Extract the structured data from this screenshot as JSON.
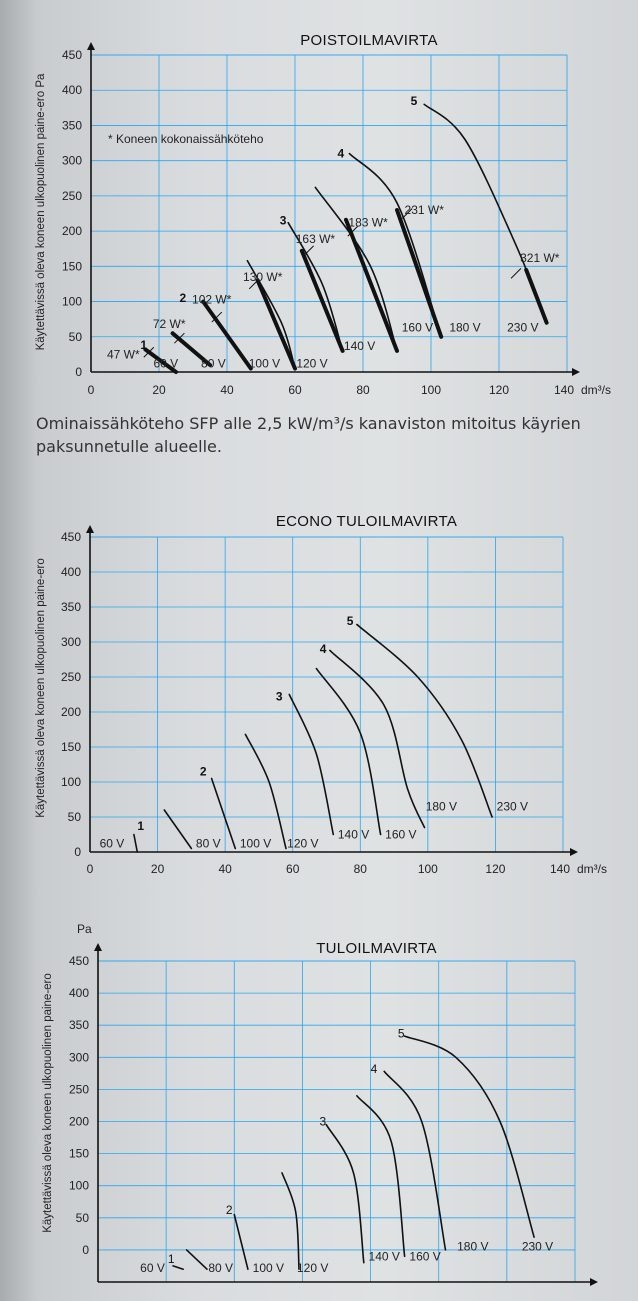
{
  "caption": "Ominaissähköteho SFP alle 2,5 kW/m³/s kanaviston mitoitus käyrien paksunnetulle alueelle.",
  "chart_data": [
    {
      "type": "line",
      "title": "POISTOILMAVIRTA",
      "ylabel": "Käytettävissä oleva koneen ulkopuolinen paine-ero Pa",
      "xunit": "dm³/s",
      "xlim": [
        0,
        140
      ],
      "ylim": [
        0,
        450
      ],
      "x_ticks": [
        "0",
        "20",
        "40",
        "60",
        "80",
        "100",
        "120",
        "140"
      ],
      "y_ticks": [
        "0",
        "50",
        "100",
        "150",
        "200",
        "250",
        "300",
        "350",
        "400",
        "450"
      ],
      "note": "* Koneen kokonaissähköteho",
      "curve_numbers": [
        "1",
        "2",
        "3",
        "4",
        "5"
      ],
      "series": [
        {
          "name": "60 V",
          "points": [
            [
              16,
              32
            ],
            [
              25,
              0
            ]
          ],
          "thick": [
            [
              16,
              32
            ],
            [
              25,
              0
            ]
          ]
        },
        {
          "name": "80 V",
          "points": [
            [
              24,
              55
            ],
            [
              35,
              10
            ]
          ],
          "thick": [
            [
              24,
              55
            ],
            [
              35,
              10
            ]
          ]
        },
        {
          "name": "100 V",
          "points": [
            [
              33,
              100
            ],
            [
              47,
              5
            ]
          ],
          "thick": [
            [
              33,
              100
            ],
            [
              47,
              5
            ]
          ]
        },
        {
          "name": "120 V",
          "points": [
            [
              46,
              158
            ],
            [
              56,
              70
            ],
            [
              60,
              5
            ]
          ],
          "thick": [
            [
              49,
              130
            ],
            [
              60,
              5
            ]
          ]
        },
        {
          "name": "140 V",
          "points": [
            [
              58,
              212
            ],
            [
              68,
              125
            ],
            [
              74,
              30
            ]
          ],
          "thick": [
            [
              62,
              172
            ],
            [
              74,
              30
            ]
          ]
        },
        {
          "name": "160 V",
          "points": [
            [
              66,
              262
            ],
            [
              82,
              152
            ],
            [
              90,
              30
            ]
          ],
          "thick": [
            [
              75,
              216
            ],
            [
              90,
              30
            ]
          ]
        },
        {
          "name": "180 V",
          "points": [
            [
              76,
              310
            ],
            [
              90,
              240
            ],
            [
              103,
              50
            ]
          ],
          "thick": [
            [
              90,
              230
            ],
            [
              103,
              50
            ]
          ]
        },
        {
          "name": "230 V",
          "points": [
            [
              98,
              380
            ],
            [
              110,
              330
            ],
            [
              125,
              180
            ],
            [
              134,
              70
            ]
          ],
          "thick": [
            [
              128,
              145
            ],
            [
              134,
              70
            ]
          ]
        }
      ],
      "series_labels": [
        {
          "name": "60 V",
          "x": 22,
          "y": 12
        },
        {
          "name": "80 V",
          "x": 36,
          "y": 12
        },
        {
          "name": "100 V",
          "x": 51,
          "y": 12
        },
        {
          "name": "120 V",
          "x": 65,
          "y": 12
        },
        {
          "name": "140 V",
          "x": 79,
          "y": 37
        },
        {
          "name": "160 V",
          "x": 96,
          "y": 63
        },
        {
          "name": "180 V",
          "x": 110,
          "y": 63
        },
        {
          "name": "230 V",
          "x": 127,
          "y": 63
        }
      ],
      "curve_number_marks": [
        {
          "label": "1",
          "x": 15.5,
          "y": 38
        },
        {
          "label": "2",
          "x": 27,
          "y": 105
        },
        {
          "label": "3",
          "x": 56.5,
          "y": 215
        },
        {
          "label": "4",
          "x": 73.5,
          "y": 310
        },
        {
          "label": "5",
          "x": 95,
          "y": 385
        }
      ],
      "power_labels": [
        {
          "label": "47 W*",
          "x": 9.5,
          "y": 25,
          "at": [
            17,
            28
          ]
        },
        {
          "label": "72 W*",
          "x": 23,
          "y": 68,
          "at": [
            26,
            48
          ]
        },
        {
          "label": "102 W*",
          "x": 35.5,
          "y": 103,
          "at": [
            37,
            78
          ]
        },
        {
          "label": "130 W*",
          "x": 50.5,
          "y": 135,
          "at": [
            48,
            125
          ]
        },
        {
          "label": "163 W*",
          "x": 66,
          "y": 189,
          "at": [
            64,
            172
          ]
        },
        {
          "label": "183 W*",
          "x": 81.5,
          "y": 212,
          "at": [
            77,
            200
          ]
        },
        {
          "label": "231 W*",
          "x": 98,
          "y": 230,
          "at": [
            93,
            225
          ]
        },
        {
          "label": "321 W*",
          "x": 132,
          "y": 162,
          "at": [
            125,
            140
          ]
        }
      ]
    },
    {
      "type": "line",
      "title": "ECONO TULOILMAVIRTA",
      "ylabel": "Käytettävissä oleva koneen ulkopuolinen paine-ero",
      "xunit": "dm³/s",
      "xlim": [
        0,
        140
      ],
      "ylim": [
        0,
        450
      ],
      "x_ticks": [
        "0",
        "20",
        "40",
        "60",
        "80",
        "100",
        "120",
        "140"
      ],
      "y_ticks": [
        "0",
        "50",
        "100",
        "150",
        "200",
        "250",
        "300",
        "350",
        "400",
        "450"
      ],
      "curve_numbers": [
        "1",
        "2",
        "3",
        "4",
        "5"
      ],
      "series": [
        {
          "name": "60 V",
          "points": [
            [
              13,
              25
            ],
            [
              14,
              0
            ]
          ]
        },
        {
          "name": "80 V",
          "points": [
            [
              22,
              60
            ],
            [
              30,
              5
            ]
          ]
        },
        {
          "name": "100 V",
          "points": [
            [
              36,
              105
            ],
            [
              43,
              5
            ]
          ]
        },
        {
          "name": "120 V",
          "points": [
            [
              46,
              168
            ],
            [
              53,
              100
            ],
            [
              58,
              5
            ]
          ]
        },
        {
          "name": "140 V",
          "points": [
            [
              59,
              225
            ],
            [
              67,
              140
            ],
            [
              72,
              25
            ]
          ]
        },
        {
          "name": "160 V",
          "points": [
            [
              67,
              262
            ],
            [
              80,
              170
            ],
            [
              86,
              25
            ]
          ]
        },
        {
          "name": "180 V",
          "points": [
            [
              71,
              288
            ],
            [
              87,
              210
            ],
            [
              94,
              90
            ],
            [
              99,
              35
            ]
          ]
        },
        {
          "name": "230 V",
          "points": [
            [
              79,
              325
            ],
            [
              97,
              250
            ],
            [
              110,
              160
            ],
            [
              119,
              50
            ]
          ]
        }
      ],
      "series_labels": [
        {
          "name": "60 V",
          "x": 6.5,
          "y": 12
        },
        {
          "name": "80 V",
          "x": 35,
          "y": 12
        },
        {
          "name": "100 V",
          "x": 49,
          "y": 12
        },
        {
          "name": "120 V",
          "x": 63,
          "y": 12
        },
        {
          "name": "140 V",
          "x": 78,
          "y": 25
        },
        {
          "name": "160 V",
          "x": 92,
          "y": 25
        },
        {
          "name": "180 V",
          "x": 104,
          "y": 65
        },
        {
          "name": "230 V",
          "x": 125,
          "y": 65
        }
      ],
      "curve_number_marks": [
        {
          "label": "1",
          "x": 15,
          "y": 37
        },
        {
          "label": "2",
          "x": 33.5,
          "y": 115
        },
        {
          "label": "3",
          "x": 56,
          "y": 222
        },
        {
          "label": "4",
          "x": 69,
          "y": 290
        },
        {
          "label": "5",
          "x": 77,
          "y": 330
        }
      ]
    },
    {
      "type": "line",
      "title": "TULOILMAVIRTA",
      "ylabel": "Käytettävissä oleva koneen ulkopuolinen paine-ero",
      "yunit": "Pa",
      "ylim": [
        -50,
        450
      ],
      "y_ticks": [
        "0",
        "50",
        "100",
        "150",
        "200",
        "250",
        "300",
        "350",
        "400",
        "450"
      ],
      "curve_numbers": [
        "1",
        "2",
        "3",
        "4",
        "5"
      ],
      "series": [
        {
          "name": "60 V",
          "points": [
            [
              22,
              -25
            ],
            [
              25,
              -30
            ]
          ]
        },
        {
          "name": "80 V",
          "points": [
            [
              26,
              0
            ],
            [
              32,
              -30
            ]
          ]
        },
        {
          "name": "100 V",
          "points": [
            [
              40,
              55
            ],
            [
              44,
              -30
            ]
          ]
        },
        {
          "name": "120 V",
          "points": [
            [
              54,
              120
            ],
            [
              58,
              60
            ],
            [
              59,
              -30
            ]
          ]
        },
        {
          "name": "140 V",
          "points": [
            [
              67,
              195
            ],
            [
              75,
              120
            ],
            [
              78,
              -20
            ]
          ]
        },
        {
          "name": "160 V",
          "points": [
            [
              76,
              240
            ],
            [
              86,
              170
            ],
            [
              90,
              -10
            ]
          ]
        },
        {
          "name": "180 V",
          "points": [
            [
              84,
              278
            ],
            [
              95,
              200
            ],
            [
              102,
              0
            ]
          ]
        },
        {
          "name": "230 V",
          "points": [
            [
              90,
              333
            ],
            [
              105,
              300
            ],
            [
              118,
              200
            ],
            [
              128,
              20
            ]
          ]
        }
      ],
      "series_labels": [
        {
          "name": "60 V",
          "x": 16,
          "y": -28
        },
        {
          "name": "80 V",
          "x": 36,
          "y": -28
        },
        {
          "name": "100 V",
          "x": 50,
          "y": -28
        },
        {
          "name": "120 V",
          "x": 63,
          "y": -28
        },
        {
          "name": "140 V",
          "x": 84,
          "y": -10
        },
        {
          "name": "160 V",
          "x": 96,
          "y": -10
        },
        {
          "name": "180 V",
          "x": 110,
          "y": 5
        },
        {
          "name": "230 V",
          "x": 129,
          "y": 5
        }
      ],
      "curve_number_marks": [
        {
          "label": "1",
          "x": 21.5,
          "y": -14
        },
        {
          "label": "2",
          "x": 38.5,
          "y": 62
        },
        {
          "label": "3",
          "x": 66,
          "y": 200
        },
        {
          "label": "4",
          "x": 81,
          "y": 282
        },
        {
          "label": "5",
          "x": 89,
          "y": 337
        }
      ]
    }
  ]
}
